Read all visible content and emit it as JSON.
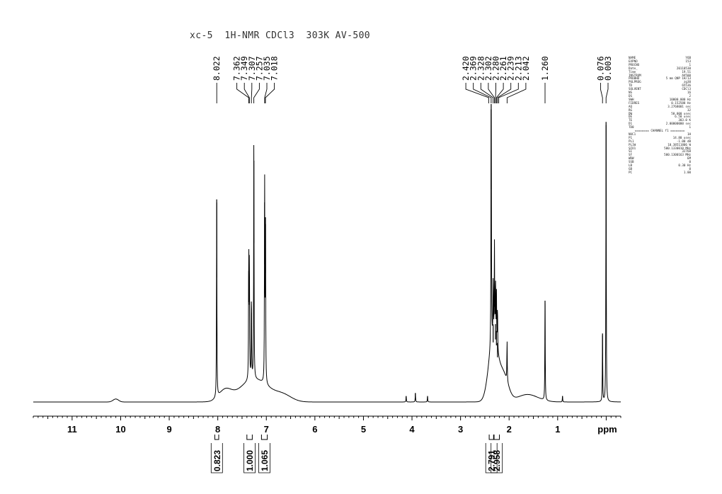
{
  "chart_data": {
    "type": "line",
    "title": "xc-5  1H-NMR CDCl3  303K AV-500",
    "xlabel": "ppm",
    "xlim": [
      11.8,
      -0.3
    ],
    "x_reversed": true,
    "xticks": [
      11,
      10,
      9,
      8,
      7,
      6,
      5,
      4,
      3,
      2,
      1
    ],
    "xtick_labels": [
      "11",
      "10",
      "9",
      "8",
      "7",
      "6",
      "5",
      "4",
      "3",
      "2",
      "1"
    ],
    "grid": false,
    "peak_labels": [
      "8.022",
      "7.362",
      "7.349",
      "7.307",
      "7.257",
      "7.035",
      "7.018",
      "2.420",
      "2.369",
      "2.328",
      "2.302",
      "2.280",
      "2.261",
      "2.239",
      "2.213",
      "2.042",
      "1.260",
      "0.076",
      "0.003"
    ],
    "peaks": [
      {
        "x": 8.022,
        "y": 0.68
      },
      {
        "x": 7.362,
        "y": 0.44
      },
      {
        "x": 7.349,
        "y": 0.42
      },
      {
        "x": 7.307,
        "y": 0.3
      },
      {
        "x": 7.257,
        "y": 0.81
      },
      {
        "x": 7.035,
        "y": 0.67
      },
      {
        "x": 7.018,
        "y": 0.62
      },
      {
        "x": 4.12,
        "y": 0.02
      },
      {
        "x": 3.93,
        "y": 0.03
      },
      {
        "x": 3.68,
        "y": 0.02
      },
      {
        "x": 2.369,
        "y": 1.0
      },
      {
        "x": 2.328,
        "y": 0.2
      },
      {
        "x": 2.302,
        "y": 0.32
      },
      {
        "x": 2.28,
        "y": 0.21
      },
      {
        "x": 2.261,
        "y": 0.19
      },
      {
        "x": 2.239,
        "y": 0.15
      },
      {
        "x": 2.042,
        "y": 0.14
      },
      {
        "x": 1.26,
        "y": 0.34
      },
      {
        "x": 0.9,
        "y": 0.02
      },
      {
        "x": 0.076,
        "y": 0.23
      },
      {
        "x": 0.003,
        "y": 0.94
      }
    ],
    "integrals": [
      {
        "range": [
          8.06,
          7.98
        ],
        "value": "0.823"
      },
      {
        "range": [
          7.4,
          7.29
        ],
        "value": "1.000"
      },
      {
        "range": [
          7.1,
          6.98
        ],
        "value": "1.065"
      },
      {
        "range": [
          2.41,
          2.32
        ],
        "value": "2.791"
      },
      {
        "range": [
          2.31,
          2.2
        ],
        "value": "2.958"
      }
    ]
  },
  "acquisition_params": [
    [
      "NAME",
      "Y6B"
    ],
    [
      "EXPNO",
      "153"
    ],
    [
      "PROCNO",
      "1"
    ],
    [
      "Date_",
      "20110530"
    ],
    [
      "Time",
      "19.51"
    ],
    [
      "INSTRUM",
      "AV500"
    ],
    [
      "PROBHD",
      "5 mm QNP 1H/13"
    ],
    [
      "PULPROG",
      "zg30"
    ],
    [
      "TD",
      "65536"
    ],
    [
      "SOLVENT",
      "CDCl3"
    ],
    [
      "NS",
      "16"
    ],
    [
      "DS",
      "2"
    ],
    [
      "SWH",
      "10000.000 Hz"
    ],
    [
      "FIDRES",
      "0.152588 Hz"
    ],
    [
      "AQ",
      "3.2768001 sec"
    ],
    [
      "RG",
      "32"
    ],
    [
      "DW",
      "50.000 usec"
    ],
    [
      "DE",
      "6.50 usec"
    ],
    [
      "TE",
      "303.0 K"
    ],
    [
      "D1",
      "2.00000000 sec"
    ],
    [
      "TD0",
      "1"
    ],
    [
      "SEP",
      "======== CHANNEL f1 ========"
    ],
    [
      "NUC1",
      "1H"
    ],
    [
      "P1",
      "14.80 usec"
    ],
    [
      "PL1",
      "-1.00 dB"
    ],
    [
      "PL1W",
      "10.38511806 W"
    ],
    [
      "SFO1",
      "500.1330010 MHz"
    ],
    [
      "SI",
      "32768"
    ],
    [
      "SF",
      "500.1300163 MHz"
    ],
    [
      "WDW",
      "EM"
    ],
    [
      "SSB",
      "0"
    ],
    [
      "LB",
      "0.30 Hz"
    ],
    [
      "GB",
      "0"
    ],
    [
      "PC",
      "1.00"
    ]
  ]
}
